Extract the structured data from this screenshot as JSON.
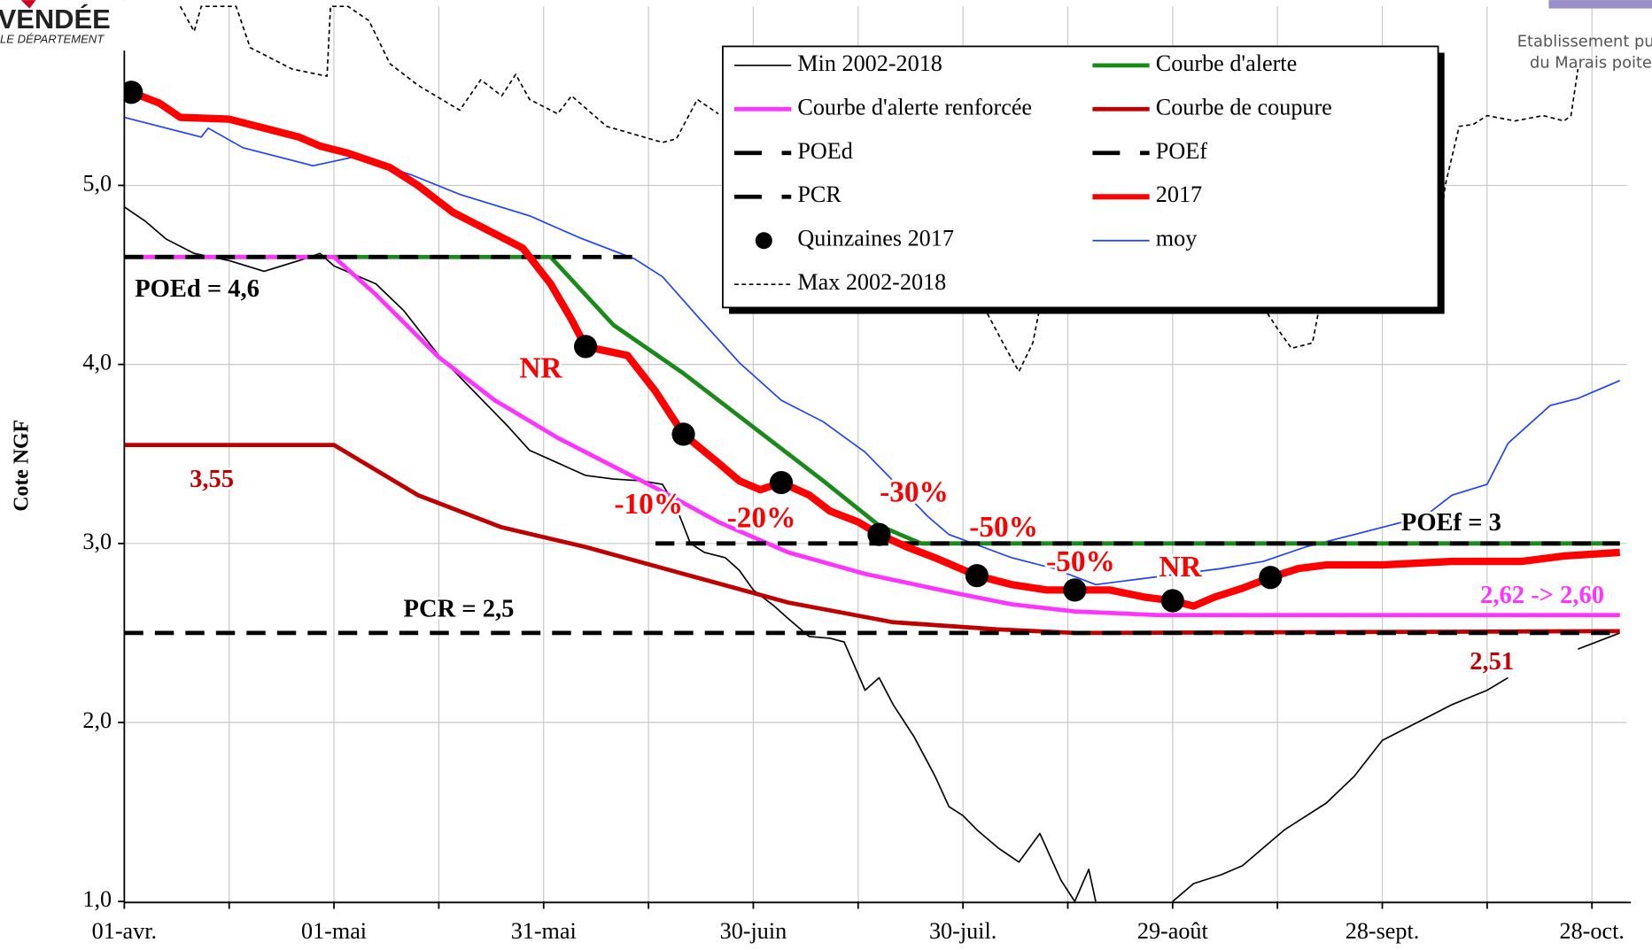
{
  "chart_data": {
    "type": "line",
    "y_axis_label": "Cote NGF",
    "logo": {
      "name": "VENDÉE",
      "subtitle": "LE DÉPARTEMENT"
    },
    "header_right": [
      "Etablissement pu",
      "du Marais poitev"
    ],
    "xlim": [
      0,
      215
    ],
    "xticks": [
      {
        "value": 0,
        "label": "01-avr."
      },
      {
        "value": 30,
        "label": "01-mai"
      },
      {
        "value": 60,
        "label": "31-mai"
      },
      {
        "value": 90,
        "label": "30-juin"
      },
      {
        "value": 120,
        "label": "30-juil."
      },
      {
        "value": 150,
        "label": "29-août"
      },
      {
        "value": 180,
        "label": "28-sept."
      },
      {
        "value": 210,
        "label": "28-oct."
      }
    ],
    "xminorticks": [
      15,
      45,
      75,
      105,
      135,
      165,
      195
    ],
    "ylim": [
      1,
      6
    ],
    "yticks": [
      {
        "value": 1,
        "label": "1,0"
      },
      {
        "value": 2,
        "label": "2,0"
      },
      {
        "value": 3,
        "label": "3,0"
      },
      {
        "value": 4,
        "label": "4,0"
      },
      {
        "value": 5,
        "label": "5,0"
      }
    ],
    "grid": true,
    "legend": "top-right",
    "series": [
      {
        "name": "Min 2002-2018",
        "color": "#000000",
        "style": "thin",
        "x": [
          0,
          3,
          6,
          10,
          15,
          20,
          25,
          28,
          30,
          33,
          36,
          40,
          45,
          50,
          55,
          58,
          62,
          66,
          70,
          74,
          77,
          79,
          81,
          83,
          86,
          88,
          90,
          93,
          95,
          98,
          101,
          103,
          106,
          108,
          110,
          113,
          116,
          118,
          120,
          122,
          125,
          128,
          131,
          134,
          136,
          138,
          139,
          145,
          150,
          153,
          157,
          160,
          163,
          166,
          168,
          172,
          176,
          180,
          185,
          190,
          195,
          198,
          203,
          208,
          214
        ],
        "values": [
          4.88,
          4.8,
          4.7,
          4.62,
          4.58,
          4.52,
          4.58,
          4.62,
          4.55,
          4.5,
          4.45,
          4.3,
          4.05,
          3.85,
          3.65,
          3.52,
          3.45,
          3.38,
          3.36,
          3.35,
          3.33,
          3.2,
          3.0,
          2.95,
          2.92,
          2.85,
          2.74,
          2.65,
          2.58,
          2.48,
          2.47,
          2.45,
          2.18,
          2.25,
          2.1,
          1.92,
          1.7,
          1.53,
          1.48,
          1.4,
          1.3,
          1.22,
          1.38,
          1.12,
          1.0,
          1.18,
          1.0,
          null,
          1.0,
          1.1,
          1.15,
          1.2,
          1.3,
          1.4,
          1.45,
          1.55,
          1.7,
          1.9,
          2.0,
          2.1,
          2.18,
          2.25,
          null,
          2.41,
          2.5
        ]
      },
      {
        "name": "Courbe d'alerte",
        "color": "#1a8a1a",
        "style": "thick",
        "x": [
          0,
          61,
          70,
          80,
          90,
          100,
          108,
          114,
          214
        ],
        "values": [
          4.6,
          4.6,
          4.22,
          3.95,
          3.65,
          3.35,
          3.1,
          3.0,
          3.0
        ]
      },
      {
        "name": "Courbe d'alerte renforcée",
        "color": "#ff33ff",
        "style": "thick",
        "x": [
          0,
          30,
          36,
          45,
          53,
          62,
          72,
          77,
          85,
          95,
          106,
          118,
          127,
          136,
          148,
          214
        ],
        "values": [
          4.6,
          4.6,
          4.39,
          4.04,
          3.8,
          3.59,
          3.39,
          3.29,
          3.12,
          2.95,
          2.83,
          2.73,
          2.66,
          2.62,
          2.6,
          2.6
        ]
      },
      {
        "name": "Courbe de coupure",
        "color": "#c00000",
        "style": "thick",
        "x": [
          0,
          30,
          42,
          54,
          66,
          80,
          95,
          110,
          125,
          136,
          214
        ],
        "values": [
          3.55,
          3.55,
          3.27,
          3.09,
          2.98,
          2.83,
          2.67,
          2.56,
          2.52,
          2.5,
          2.51
        ]
      },
      {
        "name": "POEd",
        "color": "#000000",
        "style": "dashed",
        "x": [
          0,
          73
        ],
        "values": [
          4.6,
          4.6
        ]
      },
      {
        "name": "POEf",
        "color": "#000000",
        "style": "dashed",
        "x": [
          76,
          214
        ],
        "values": [
          3,
          3
        ]
      },
      {
        "name": "PCR",
        "color": "#000000",
        "style": "dashed",
        "x": [
          0,
          214
        ],
        "values": [
          2.5,
          2.5
        ]
      },
      {
        "name": "2017",
        "color": "#ff0000",
        "style": "bold",
        "x": [
          1,
          5,
          8,
          15,
          20,
          25,
          28,
          32,
          38,
          42,
          47,
          52,
          57,
          61,
          64,
          66,
          72,
          76,
          80,
          85,
          88,
          91,
          94,
          98,
          101,
          105,
          108,
          112,
          116,
          122,
          127,
          132,
          136,
          141,
          146,
          150,
          153,
          156,
          160,
          164,
          168,
          172,
          180,
          190,
          200,
          206,
          214
        ],
        "values": [
          5.52,
          5.46,
          5.38,
          5.37,
          5.32,
          5.27,
          5.22,
          5.18,
          5.1,
          5.0,
          4.85,
          4.75,
          4.65,
          4.45,
          4.25,
          4.1,
          4.05,
          3.85,
          3.61,
          3.45,
          3.35,
          3.3,
          3.34,
          3.27,
          3.18,
          3.12,
          3.05,
          2.98,
          2.92,
          2.82,
          2.77,
          2.74,
          2.74,
          2.74,
          2.7,
          2.68,
          2.65,
          2.7,
          2.75,
          2.81,
          2.86,
          2.88,
          2.88,
          2.9,
          2.9,
          2.93,
          2.95
        ]
      },
      {
        "name": "Quinzaines 2017",
        "color": "#000000",
        "style": "points",
        "x": [
          1,
          66,
          80,
          94,
          108,
          122,
          136,
          150,
          164
        ],
        "values": [
          5.52,
          4.1,
          3.61,
          3.34,
          3.05,
          2.82,
          2.74,
          2.68,
          2.81
        ]
      },
      {
        "name": "moy",
        "color": "#1f3fff",
        "style": "thin",
        "x": [
          0,
          11,
          12,
          17,
          23,
          27,
          33,
          41,
          48,
          58,
          65,
          73,
          77,
          82,
          88,
          94,
          100,
          106,
          112,
          115,
          118,
          127,
          133,
          139,
          145,
          151,
          157,
          163,
          169,
          175,
          181,
          186,
          190,
          195,
          198,
          204,
          208,
          214
        ],
        "values": [
          5.38,
          5.27,
          5.32,
          5.21,
          5.15,
          5.11,
          5.16,
          5.06,
          4.95,
          4.83,
          4.71,
          4.59,
          4.49,
          4.27,
          4.01,
          3.8,
          3.68,
          3.51,
          3.27,
          3.15,
          3.05,
          2.92,
          2.86,
          2.77,
          2.8,
          2.83,
          2.86,
          2.9,
          2.98,
          3.04,
          3.1,
          3.15,
          3.27,
          3.33,
          3.56,
          3.77,
          3.81,
          3.91
        ]
      },
      {
        "name": "Max 2002-2018",
        "color": "#000000",
        "style": "dotted",
        "x": [
          8,
          10,
          11,
          16,
          18,
          21,
          24,
          29,
          29.5,
          32,
          35,
          38,
          42,
          48,
          51,
          54,
          56,
          58,
          62,
          64,
          69,
          77,
          79,
          82,
          85,
          86,
          123,
          126,
          128,
          130,
          131,
          132,
          163,
          165,
          167,
          170,
          171,
          172,
          188,
          189,
          191,
          193,
          195,
          199,
          203,
          206,
          207,
          208
        ],
        "values": [
          6.0,
          5.86,
          6.0,
          6.0,
          5.77,
          5.71,
          5.65,
          5.61,
          6.0,
          6.0,
          5.92,
          5.68,
          5.56,
          5.42,
          5.59,
          5.5,
          5.62,
          5.48,
          5.4,
          5.5,
          5.33,
          5.24,
          5.26,
          5.48,
          5.4,
          null,
          4.32,
          4.1,
          3.96,
          4.12,
          4.32,
          null,
          4.32,
          4.2,
          4.09,
          4.12,
          4.32,
          null,
          4.68,
          5.0,
          5.33,
          5.34,
          5.39,
          5.36,
          5.39,
          5.36,
          5.39,
          5.65
        ]
      }
    ],
    "annotations": [
      "POEd = 4,6",
      "NR",
      "3,55",
      "-10%",
      "-20%",
      "-30%",
      "-50%",
      "-50%",
      "NR",
      "POEf = 3",
      "2,62 -> 2,60",
      "PCR = 2,5",
      "2,51"
    ]
  }
}
